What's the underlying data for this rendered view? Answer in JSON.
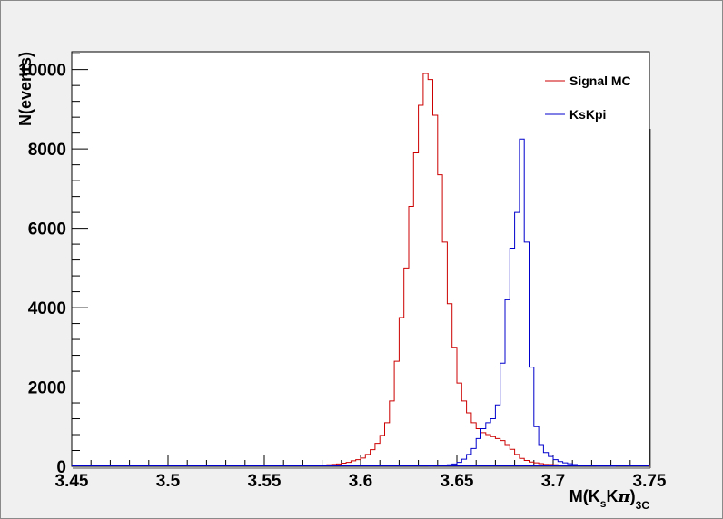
{
  "chart_data": {
    "type": "histogram",
    "xlabel": {
      "main": "M(K",
      "sub1": "s",
      "mid": "K",
      "pi": "π",
      "close": ")",
      "sub2": "3C"
    },
    "ylabel": "N(events)",
    "xlim": [
      3.45,
      3.75
    ],
    "ylim": [
      0,
      10450
    ],
    "x_tick_labels": [
      "3.45",
      "3.5",
      "3.55",
      "3.6",
      "3.65",
      "3.7",
      "3.75"
    ],
    "y_tick_labels": [
      "0",
      "2000",
      "4000",
      "6000",
      "8000",
      "10000"
    ],
    "legend": {
      "position": "top-right"
    },
    "series": [
      {
        "name": "Signal MC",
        "color": "#cc0000",
        "x": [
          3.575,
          3.5775,
          3.58,
          3.5825,
          3.585,
          3.5875,
          3.59,
          3.5925,
          3.595,
          3.5975,
          3.6,
          3.6025,
          3.605,
          3.6075,
          3.61,
          3.6125,
          3.615,
          3.6175,
          3.62,
          3.6225,
          3.625,
          3.6275,
          3.63,
          3.6325,
          3.635,
          3.6375,
          3.64,
          3.6425,
          3.645,
          3.6475,
          3.65,
          3.6525,
          3.655,
          3.6575,
          3.66,
          3.6625,
          3.665,
          3.6675,
          3.67,
          3.6725,
          3.675,
          3.6775,
          3.68,
          3.6825,
          3.685,
          3.6875,
          3.69,
          3.6925,
          3.695,
          3.6975,
          3.7,
          3.7025,
          3.705,
          3.7075,
          3.71,
          3.7125,
          3.715,
          3.7175,
          3.72,
          3.7225,
          3.725,
          3.7275,
          3.73,
          3.7325,
          3.735,
          3.7375,
          3.74,
          3.7425,
          3.745,
          3.7475
        ],
        "values": [
          20,
          20,
          30,
          40,
          50,
          60,
          80,
          100,
          140,
          170,
          210,
          300,
          420,
          580,
          780,
          1100,
          1650,
          2650,
          3750,
          5000,
          6550,
          7900,
          9100,
          9900,
          9750,
          8850,
          7350,
          5650,
          4100,
          3000,
          2100,
          1650,
          1350,
          1100,
          950,
          850,
          800,
          750,
          700,
          650,
          550,
          430,
          300,
          200,
          150,
          110,
          90,
          70,
          50,
          45,
          40,
          35,
          30,
          30,
          25,
          25,
          20,
          20,
          20,
          20,
          20,
          20,
          20,
          20,
          20,
          20,
          20,
          20,
          20,
          20
        ]
      },
      {
        "name": "KsKpi",
        "color": "#0000cc",
        "x": [
          3.635,
          3.6375,
          3.64,
          3.6425,
          3.645,
          3.6475,
          3.65,
          3.6525,
          3.655,
          3.6575,
          3.66,
          3.6625,
          3.665,
          3.6675,
          3.67,
          3.6725,
          3.675,
          3.6775,
          3.68,
          3.6825,
          3.685,
          3.6875,
          3.69,
          3.6925,
          3.695,
          3.6975,
          3.7,
          3.7025,
          3.705,
          3.7075,
          3.71,
          3.7125,
          3.715,
          3.7175,
          3.72,
          3.7225,
          3.725,
          3.7275,
          3.73
        ],
        "values": [
          10,
          15,
          20,
          25,
          40,
          60,
          100,
          180,
          300,
          450,
          700,
          950,
          1100,
          1200,
          1550,
          2600,
          4200,
          5500,
          6400,
          8250,
          5650,
          2500,
          1000,
          550,
          350,
          250,
          170,
          120,
          90,
          65,
          45,
          35,
          25,
          20,
          15,
          10,
          10,
          8,
          5
        ]
      }
    ]
  }
}
